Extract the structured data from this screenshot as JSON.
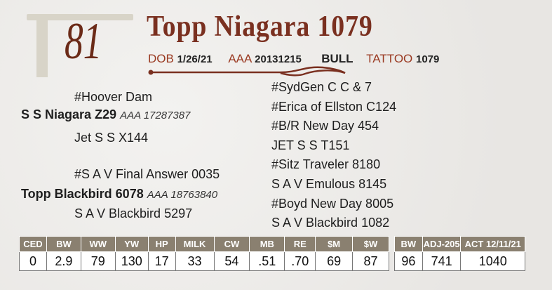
{
  "lot_number": "81",
  "title": "Topp Niagara 1079",
  "info": {
    "dob_label": "DOB",
    "dob": "1/26/21",
    "aaa_label": "AAA",
    "aaa": "20131215",
    "sex": "BULL",
    "tattoo_label": "TATTOO",
    "tattoo": "1079"
  },
  "pedigree": {
    "sire": {
      "name": "S S Niagara Z29",
      "reg": "AAA 17287387"
    },
    "sire_sire": "#Hoover Dam",
    "sire_dam": "Jet S S X144",
    "dam": {
      "name": "Topp Blackbird 6078",
      "reg": "AAA 18763840"
    },
    "dam_sire": "#S A V Final Answer 0035",
    "dam_dam": "S A V Blackbird 5297",
    "far_right": [
      "#SydGen C C & 7",
      "#Erica of Ellston C124",
      "#B/R New Day 454",
      "JET S S T151",
      "#Sitz Traveler 8180",
      "S A V Emulous 8145",
      "#Boyd New Day 8005",
      "S A V Blackbird 1082"
    ]
  },
  "epd_table": {
    "headers": [
      "CED",
      "BW",
      "WW",
      "YW",
      "HP",
      "MILK",
      "CW",
      "MB",
      "RE",
      "$M",
      "$W"
    ],
    "values": [
      "0",
      "2.9",
      "79",
      "130",
      "17",
      "33",
      "54",
      ".51",
      ".70",
      "69",
      "87"
    ]
  },
  "actual_table": {
    "headers": [
      "BW",
      "ADJ-205",
      "ACT 12/11/21"
    ],
    "values": [
      "96",
      "741",
      "1040"
    ]
  },
  "colors": {
    "title": "#7a3020",
    "label": "#9a3a22",
    "header_bg": "#8a8070"
  }
}
